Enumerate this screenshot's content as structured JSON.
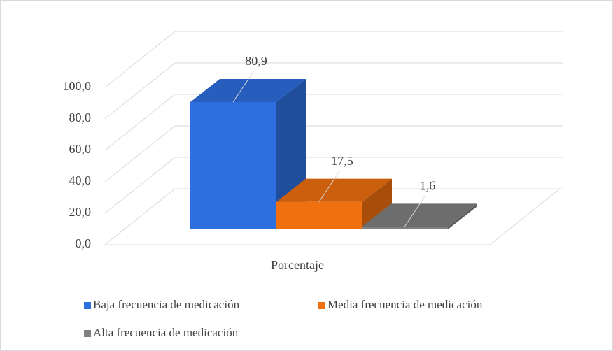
{
  "chart_data": {
    "type": "bar3d",
    "categories": [
      "Porcentaje"
    ],
    "series": [
      {
        "name": "Baja frecuencia de medicación",
        "color": "#2e6fe0",
        "values": [
          80.9
        ],
        "value_labels": [
          "80,9"
        ]
      },
      {
        "name": "Media frecuencia de medicación",
        "color": "#f07010",
        "values": [
          17.5
        ],
        "value_labels": [
          "17,5"
        ]
      },
      {
        "name": "Alta frecuencia de medicación",
        "color": "#808080",
        "values": [
          1.6
        ],
        "value_labels": [
          "1,6"
        ]
      }
    ],
    "ylim": [
      0,
      100
    ],
    "yticks": [
      {
        "value": 0,
        "label": "0,0"
      },
      {
        "value": 20,
        "label": "20,0"
      },
      {
        "value": 40,
        "label": "40,0"
      },
      {
        "value": 60,
        "label": "60,0"
      },
      {
        "value": 80,
        "label": "80,0"
      },
      {
        "value": 100,
        "label": "100,0"
      }
    ],
    "grid": true,
    "legend": "bottom"
  }
}
